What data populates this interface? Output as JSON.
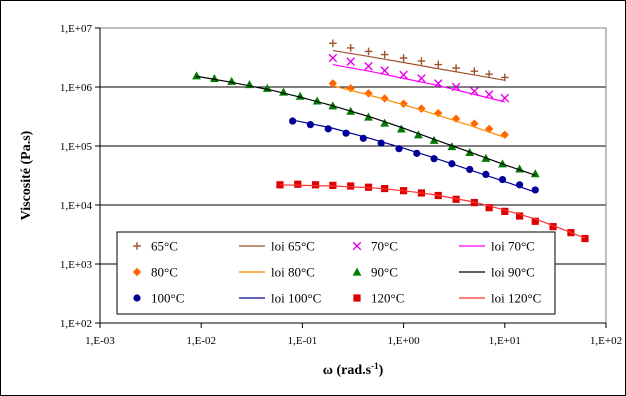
{
  "chart_data": {
    "type": "scatter",
    "xscale": "log",
    "yscale": "log",
    "xlim": [
      0.001,
      100
    ],
    "ylim": [
      100,
      10000000
    ],
    "xlabel": "ω (rad.s",
    "xlabel_sup": "-1",
    "xlabel_tail": ")",
    "ylabel": "Viscosité (Pa.s)",
    "x_ticks": [
      {
        "value": 0.001,
        "label": "1,E-03"
      },
      {
        "value": 0.01,
        "label": "1,E-02"
      },
      {
        "value": 0.1,
        "label": "1,E-01"
      },
      {
        "value": 1,
        "label": "1,E+00"
      },
      {
        "value": 10,
        "label": "1,E+01"
      },
      {
        "value": 100,
        "label": "1,E+02"
      }
    ],
    "y_ticks": [
      {
        "value": 100,
        "label": "1,E+02"
      },
      {
        "value": 1000,
        "label": "1,E+03"
      },
      {
        "value": 10000,
        "label": "1,E+04"
      },
      {
        "value": 100000,
        "label": "1,E+05"
      },
      {
        "value": 1000000,
        "label": "1,E+06"
      },
      {
        "value": 10000000,
        "label": "1,E+07"
      }
    ],
    "grid": {
      "x": false,
      "y": true
    },
    "legend_position": "bottom-inside",
    "series": [
      {
        "name": "65°C",
        "marker": "plus",
        "color": "#a0522d",
        "points": [
          [
            0.2,
            5500000
          ],
          [
            0.3,
            4600000
          ],
          [
            0.45,
            4000000
          ],
          [
            0.65,
            3550000
          ],
          [
            1.0,
            3100000
          ],
          [
            1.5,
            2750000
          ],
          [
            2.2,
            2400000
          ],
          [
            3.3,
            2100000
          ],
          [
            5.0,
            1850000
          ],
          [
            7.0,
            1650000
          ],
          [
            10.0,
            1450000
          ]
        ]
      },
      {
        "name": "loi 65°C",
        "line": true,
        "color": "#a0522d",
        "points": [
          [
            0.2,
            4150000
          ],
          [
            0.5,
            3200000
          ],
          [
            1.0,
            2600000
          ],
          [
            2.0,
            2100000
          ],
          [
            5.0,
            1600000
          ],
          [
            10.0,
            1300000
          ]
        ]
      },
      {
        "name": "70°C",
        "marker": "cross",
        "color": "#e600e6",
        "points": [
          [
            0.2,
            3100000
          ],
          [
            0.3,
            2700000
          ],
          [
            0.45,
            2250000
          ],
          [
            0.65,
            1900000
          ],
          [
            1.0,
            1600000
          ],
          [
            1.5,
            1400000
          ],
          [
            2.2,
            1150000
          ],
          [
            3.3,
            1000000
          ],
          [
            5.0,
            850000
          ],
          [
            7.0,
            750000
          ],
          [
            10.0,
            650000
          ]
        ]
      },
      {
        "name": "loi 70°C",
        "line": true,
        "color": "#ff00ff",
        "points": [
          [
            0.2,
            2400000
          ],
          [
            0.5,
            1800000
          ],
          [
            1.0,
            1400000
          ],
          [
            2.0,
            1100000
          ],
          [
            5.0,
            750000
          ],
          [
            10.0,
            560000
          ]
        ]
      },
      {
        "name": "80°C",
        "marker": "diamond",
        "color": "#ff6600",
        "points": [
          [
            0.2,
            1150000
          ],
          [
            0.3,
            950000
          ],
          [
            0.45,
            780000
          ],
          [
            0.65,
            640000
          ],
          [
            1.0,
            520000
          ],
          [
            1.5,
            430000
          ],
          [
            2.2,
            360000
          ],
          [
            3.3,
            290000
          ],
          [
            5.0,
            240000
          ],
          [
            7.0,
            195000
          ],
          [
            10.0,
            155000
          ]
        ]
      },
      {
        "name": "loi 80°C",
        "line": true,
        "color": "#ff8c00",
        "points": [
          [
            0.2,
            1050000
          ],
          [
            0.5,
            700000
          ],
          [
            1.0,
            500000
          ],
          [
            2.0,
            350000
          ],
          [
            5.0,
            210000
          ],
          [
            10.0,
            140000
          ]
        ]
      },
      {
        "name": "90°C",
        "marker": "triangle",
        "color": "#007a00",
        "points": [
          [
            0.009,
            1550000
          ],
          [
            0.0135,
            1400000
          ],
          [
            0.02,
            1250000
          ],
          [
            0.03,
            1100000
          ],
          [
            0.045,
            950000
          ],
          [
            0.065,
            820000
          ],
          [
            0.095,
            700000
          ],
          [
            0.14,
            580000
          ],
          [
            0.2,
            480000
          ],
          [
            0.3,
            390000
          ],
          [
            0.45,
            310000
          ],
          [
            0.65,
            245000
          ],
          [
            0.95,
            195000
          ],
          [
            1.4,
            155000
          ],
          [
            2.0,
            125000
          ],
          [
            3.0,
            98000
          ],
          [
            4.5,
            78000
          ],
          [
            6.5,
            62000
          ],
          [
            9.5,
            50000
          ],
          [
            14.0,
            41000
          ],
          [
            20.0,
            34000
          ]
        ]
      },
      {
        "name": "loi 90°C",
        "line": true,
        "color": "#000000",
        "points": [
          [
            0.009,
            1520000
          ],
          [
            0.02,
            1200000
          ],
          [
            0.05,
            880000
          ],
          [
            0.1,
            660000
          ],
          [
            0.2,
            480000
          ],
          [
            0.5,
            300000
          ],
          [
            1.0,
            200000
          ],
          [
            2.0,
            130000
          ],
          [
            5.0,
            74000
          ],
          [
            10.0,
            48000
          ],
          [
            20.0,
            32000
          ]
        ]
      },
      {
        "name": "100°C",
        "marker": "circle",
        "color": "#000099",
        "points": [
          [
            0.08,
            265000
          ],
          [
            0.12,
            230000
          ],
          [
            0.18,
            195000
          ],
          [
            0.27,
            165000
          ],
          [
            0.4,
            135000
          ],
          [
            0.6,
            112000
          ],
          [
            0.9,
            90000
          ],
          [
            1.35,
            75000
          ],
          [
            2.0,
            61000
          ],
          [
            3.0,
            50000
          ],
          [
            4.5,
            40000
          ],
          [
            6.5,
            33000
          ],
          [
            9.5,
            27000
          ],
          [
            14.0,
            22000
          ],
          [
            20.0,
            18000
          ]
        ]
      },
      {
        "name": "loi 100°C",
        "line": true,
        "color": "#000099",
        "points": [
          [
            0.08,
            275000
          ],
          [
            0.2,
            200000
          ],
          [
            0.5,
            130000
          ],
          [
            1.0,
            92000
          ],
          [
            2.0,
            63000
          ],
          [
            5.0,
            37000
          ],
          [
            10.0,
            25000
          ],
          [
            20.0,
            16500
          ]
        ]
      },
      {
        "name": "120°C",
        "marker": "square",
        "color": "#dd0000",
        "points": [
          [
            0.06,
            22000
          ],
          [
            0.09,
            22500
          ],
          [
            0.135,
            22000
          ],
          [
            0.2,
            21500
          ],
          [
            0.3,
            21000
          ],
          [
            0.45,
            20000
          ],
          [
            0.65,
            19000
          ],
          [
            1.0,
            17500
          ],
          [
            1.5,
            16000
          ],
          [
            2.2,
            14500
          ],
          [
            3.3,
            12500
          ],
          [
            5.0,
            11000
          ],
          [
            7.0,
            9000
          ],
          [
            10.0,
            7800
          ],
          [
            14.0,
            6500
          ],
          [
            20.0,
            5300
          ],
          [
            30.0,
            4300
          ],
          [
            45.0,
            3400
          ],
          [
            62.0,
            2700
          ]
        ]
      },
      {
        "name": "loi 120°C",
        "line": true,
        "color": "#ff3333",
        "points": [
          [
            0.06,
            22000
          ],
          [
            0.1,
            21500
          ],
          [
            0.2,
            21000
          ],
          [
            0.5,
            19500
          ],
          [
            1.0,
            17500
          ],
          [
            2.0,
            15000
          ],
          [
            5.0,
            11200
          ],
          [
            10.0,
            8200
          ],
          [
            20.0,
            5800
          ],
          [
            40.0,
            3700
          ],
          [
            62.0,
            2750
          ]
        ]
      }
    ]
  }
}
